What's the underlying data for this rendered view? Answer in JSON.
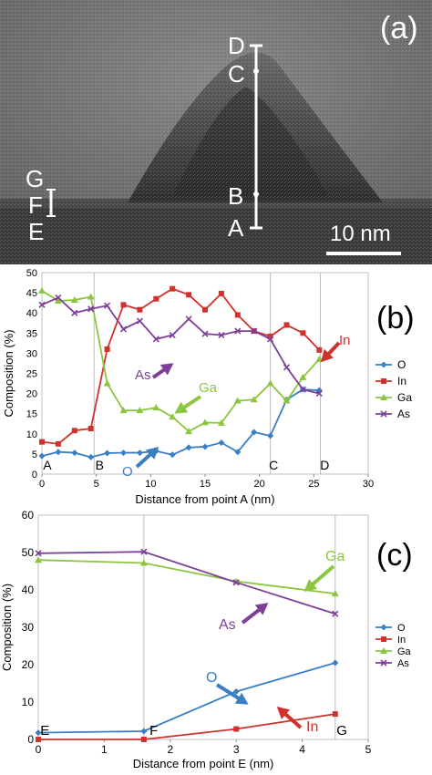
{
  "panel_a": {
    "panel_label": "(a)",
    "point_labels": [
      "D",
      "C",
      "B",
      "A",
      "G",
      "F",
      "E"
    ],
    "scale_bar": "10 nm"
  },
  "chart_data": [
    {
      "type": "line",
      "panel_label": "(b)",
      "xlabel": "Distance from point A (nm)",
      "ylabel": "Composition (%)",
      "xlim": [
        0,
        30
      ],
      "ylim": [
        0,
        50
      ],
      "xticks": [
        0,
        5,
        10,
        15,
        20,
        25,
        30
      ],
      "yticks": [
        0,
        5,
        10,
        15,
        20,
        25,
        30,
        35,
        40,
        45,
        50
      ],
      "grid": "vertical lines at B, C, D",
      "legend": "right",
      "markers_on_plot": [
        {
          "text": "A",
          "x": 0.5
        },
        {
          "text": "B",
          "x": 5.3
        },
        {
          "text": "C",
          "x": 21.3
        },
        {
          "text": "D",
          "x": 26.0
        }
      ],
      "series": [
        {
          "name": "O",
          "color": "#3A7FC4",
          "x": [
            0,
            1.5,
            3,
            4.5,
            6,
            7.5,
            9,
            10.5,
            12,
            13.5,
            15,
            16.5,
            18,
            19.5,
            21,
            22.5,
            24,
            25.5
          ],
          "y": [
            4.5,
            5.5,
            5.3,
            4.2,
            5.2,
            5.3,
            5.3,
            5.7,
            4.8,
            6.6,
            6.8,
            7.8,
            5.5,
            10.4,
            9.5,
            18.5,
            21,
            20.8
          ]
        },
        {
          "name": "In",
          "color": "#D0312D",
          "x": [
            0,
            1.5,
            3,
            4.5,
            6,
            7.5,
            9,
            10.5,
            12,
            13.5,
            15,
            16.5,
            18,
            19.5,
            21,
            22.5,
            24,
            25.5
          ],
          "y": [
            8,
            7.5,
            10.8,
            11.3,
            31,
            42,
            40.8,
            43.5,
            46,
            44.5,
            40.8,
            44.8,
            39.5,
            35.5,
            34.2,
            37,
            35,
            30.8
          ]
        },
        {
          "name": "Ga",
          "color": "#8CC63F",
          "x": [
            0,
            1.5,
            3,
            4.5,
            6,
            7.5,
            9,
            10.5,
            12,
            13.5,
            15,
            16.5,
            18,
            19.5,
            21,
            22.5,
            24,
            25.5
          ],
          "y": [
            45.5,
            43,
            43.2,
            44,
            22.5,
            15.8,
            15.8,
            16.5,
            14.2,
            10.6,
            12.8,
            12.7,
            18.2,
            18.5,
            22.5,
            18.2,
            24,
            28.5
          ]
        },
        {
          "name": "As",
          "color": "#7E3F98",
          "x": [
            0,
            1.5,
            3,
            4.5,
            6,
            7.5,
            9,
            10.5,
            12,
            13.5,
            15,
            16.5,
            18,
            19.5,
            21,
            22.5,
            24,
            25.5
          ],
          "y": [
            42,
            43.8,
            40,
            41,
            41.8,
            36,
            38,
            33.5,
            34.5,
            38.5,
            34.8,
            34.5,
            35.5,
            35.5,
            33.5,
            26.5,
            21,
            20
          ]
        }
      ],
      "annotations": [
        {
          "text": "In",
          "color": "#D0312D"
        },
        {
          "text": "Ga",
          "color": "#8CC63F"
        },
        {
          "text": "As",
          "color": "#7E3F98"
        },
        {
          "text": "O",
          "color": "#3A7FC4"
        }
      ]
    },
    {
      "type": "line",
      "panel_label": "(c)",
      "xlabel": "Distance from point E (nm)",
      "ylabel": "Composition (%)",
      "xlim": [
        0,
        5
      ],
      "ylim": [
        0,
        60
      ],
      "xticks": [
        0,
        1,
        2,
        3,
        4,
        5
      ],
      "yticks": [
        0,
        10,
        20,
        30,
        40,
        50,
        60
      ],
      "grid": "vertical lines at F, G",
      "legend": "right",
      "markers_on_plot": [
        {
          "text": "E",
          "x": 0.1
        },
        {
          "text": "F",
          "x": 1.75
        },
        {
          "text": "G",
          "x": 4.6
        }
      ],
      "series": [
        {
          "name": "O",
          "color": "#3A7FC4",
          "x": [
            0,
            1.6,
            3,
            4.5
          ],
          "y": [
            1.8,
            2.2,
            12.8,
            20.5
          ]
        },
        {
          "name": "In",
          "color": "#D0312D",
          "x": [
            0,
            1.6,
            3,
            4.5
          ],
          "y": [
            0,
            0,
            2.8,
            6.8
          ]
        },
        {
          "name": "Ga",
          "color": "#8CC63F",
          "x": [
            0,
            1.6,
            3,
            4.5
          ],
          "y": [
            48,
            47.2,
            42.3,
            39
          ]
        },
        {
          "name": "As",
          "color": "#7E3F98",
          "x": [
            0,
            1.6,
            3,
            4.5
          ],
          "y": [
            49.8,
            50.2,
            42,
            33.6
          ]
        }
      ],
      "annotations": [
        {
          "text": "Ga",
          "color": "#8CC63F"
        },
        {
          "text": "As",
          "color": "#7E3F98"
        },
        {
          "text": "O",
          "color": "#3A7FC4"
        },
        {
          "text": "In",
          "color": "#D0312D"
        }
      ]
    }
  ]
}
